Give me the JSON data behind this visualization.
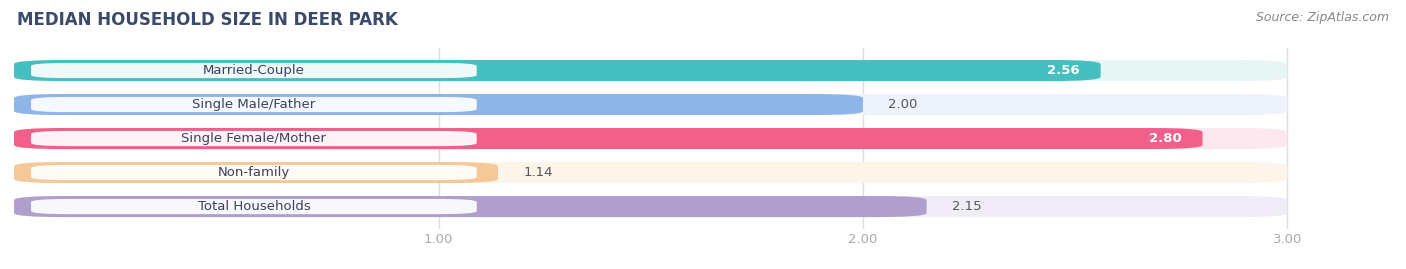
{
  "title": "MEDIAN HOUSEHOLD SIZE IN DEER PARK",
  "source": "Source: ZipAtlas.com",
  "categories": [
    "Married-Couple",
    "Single Male/Father",
    "Single Female/Mother",
    "Non-family",
    "Total Households"
  ],
  "values": [
    2.56,
    2.0,
    2.8,
    1.14,
    2.15
  ],
  "bar_colors": [
    "#45bfbf",
    "#8fb4e8",
    "#f0608a",
    "#f5c89a",
    "#b09fcc"
  ],
  "bar_bg_colors": [
    "#e8f5f5",
    "#eef2fc",
    "#fde8ef",
    "#fdf5ea",
    "#f0ecf8"
  ],
  "value_inside": [
    true,
    false,
    true,
    false,
    false
  ],
  "value_colors_inside": [
    "white",
    "white",
    "white",
    "white",
    "white"
  ],
  "value_colors_outside": [
    "#555555",
    "#555555",
    "#555555",
    "#555555",
    "#555555"
  ],
  "xlim": [
    0,
    3.18
  ],
  "xdata_max": 3.0,
  "xticks": [
    1.0,
    2.0,
    3.0
  ],
  "title_fontsize": 12,
  "label_fontsize": 9.5,
  "value_fontsize": 9.5,
  "source_fontsize": 9,
  "bar_height": 0.62,
  "background_color": "#ffffff",
  "label_pill_color": "#ffffff",
  "title_color": "#3a4a6b",
  "source_color": "#888888",
  "tick_color": "#aaaaaa",
  "grid_color": "#dddddd"
}
